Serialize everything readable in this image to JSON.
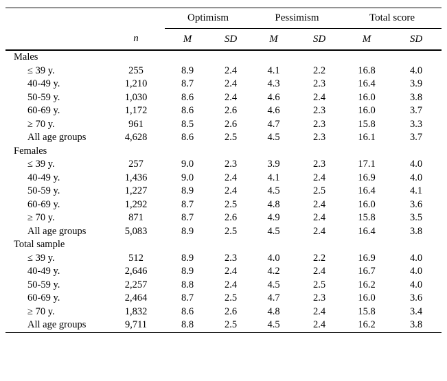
{
  "colors": {
    "background": "#ffffff",
    "text": "#000000",
    "rule": "#000000"
  },
  "table": {
    "spanners": [
      {
        "label": "Optimism"
      },
      {
        "label": "Pessimism"
      },
      {
        "label": "Total score"
      }
    ],
    "column_headers": {
      "n": "n",
      "m1": "M",
      "sd1": "SD",
      "m2": "M",
      "sd2": "SD",
      "m3": "M",
      "sd3": "SD"
    },
    "sections": [
      {
        "label": "Males",
        "rows": [
          {
            "label": "≤ 39 y.",
            "n": "255",
            "optimism_m": "8.9",
            "optimism_sd": "2.4",
            "pessimism_m": "4.1",
            "pessimism_sd": "2.2",
            "total_m": "16.8",
            "total_sd": "4.0"
          },
          {
            "label": "40-49 y.",
            "n": "1,210",
            "optimism_m": "8.7",
            "optimism_sd": "2.4",
            "pessimism_m": "4.3",
            "pessimism_sd": "2.3",
            "total_m": "16.4",
            "total_sd": "3.9"
          },
          {
            "label": "50-59 y.",
            "n": "1,030",
            "optimism_m": "8.6",
            "optimism_sd": "2.4",
            "pessimism_m": "4.6",
            "pessimism_sd": "2.4",
            "total_m": "16.0",
            "total_sd": "3.8"
          },
          {
            "label": "60-69 y.",
            "n": "1,172",
            "optimism_m": "8.6",
            "optimism_sd": "2.6",
            "pessimism_m": "4.6",
            "pessimism_sd": "2.3",
            "total_m": "16.0",
            "total_sd": "3.7"
          },
          {
            "label": "≥ 70 y.",
            "n": "961",
            "optimism_m": "8.5",
            "optimism_sd": "2.6",
            "pessimism_m": "4.7",
            "pessimism_sd": "2.3",
            "total_m": "15.8",
            "total_sd": "3.3"
          },
          {
            "label": "All age groups",
            "n": "4,628",
            "optimism_m": "8.6",
            "optimism_sd": "2.5",
            "pessimism_m": "4.5",
            "pessimism_sd": "2.3",
            "total_m": "16.1",
            "total_sd": "3.7"
          }
        ]
      },
      {
        "label": "Females",
        "rows": [
          {
            "label": "≤ 39 y.",
            "n": "257",
            "optimism_m": "9.0",
            "optimism_sd": "2.3",
            "pessimism_m": "3.9",
            "pessimism_sd": "2.3",
            "total_m": "17.1",
            "total_sd": "4.0"
          },
          {
            "label": "40-49 y.",
            "n": "1,436",
            "optimism_m": "9.0",
            "optimism_sd": "2.4",
            "pessimism_m": "4.1",
            "pessimism_sd": "2.4",
            "total_m": "16.9",
            "total_sd": "4.0"
          },
          {
            "label": "50-59 y.",
            "n": "1,227",
            "optimism_m": "8.9",
            "optimism_sd": "2.4",
            "pessimism_m": "4.5",
            "pessimism_sd": "2.5",
            "total_m": "16.4",
            "total_sd": "4.1"
          },
          {
            "label": "60-69 y.",
            "n": "1,292",
            "optimism_m": "8.7",
            "optimism_sd": "2.5",
            "pessimism_m": "4.8",
            "pessimism_sd": "2.4",
            "total_m": "16.0",
            "total_sd": "3.6"
          },
          {
            "label": "≥ 70 y.",
            "n": "871",
            "optimism_m": "8.7",
            "optimism_sd": "2.6",
            "pessimism_m": "4.9",
            "pessimism_sd": "2.4",
            "total_m": "15.8",
            "total_sd": "3.5"
          },
          {
            "label": "All age groups",
            "n": "5,083",
            "optimism_m": "8.9",
            "optimism_sd": "2.5",
            "pessimism_m": "4.5",
            "pessimism_sd": "2.4",
            "total_m": "16.4",
            "total_sd": "3.8"
          }
        ]
      },
      {
        "label": "Total sample",
        "rows": [
          {
            "label": "≤ 39 y.",
            "n": "512",
            "optimism_m": "8.9",
            "optimism_sd": "2.3",
            "pessimism_m": "4.0",
            "pessimism_sd": "2.2",
            "total_m": "16.9",
            "total_sd": "4.0"
          },
          {
            "label": "40-49 y.",
            "n": "2,646",
            "optimism_m": "8.9",
            "optimism_sd": "2.4",
            "pessimism_m": "4.2",
            "pessimism_sd": "2.4",
            "total_m": "16.7",
            "total_sd": "4.0"
          },
          {
            "label": "50-59 y.",
            "n": "2,257",
            "optimism_m": "8.8",
            "optimism_sd": "2.4",
            "pessimism_m": "4.5",
            "pessimism_sd": "2.5",
            "total_m": "16.2",
            "total_sd": "4.0"
          },
          {
            "label": "60-69 y.",
            "n": "2,464",
            "optimism_m": "8.7",
            "optimism_sd": "2.5",
            "pessimism_m": "4.7",
            "pessimism_sd": "2.3",
            "total_m": "16.0",
            "total_sd": "3.6"
          },
          {
            "label": "≥ 70 y.",
            "n": "1,832",
            "optimism_m": "8.6",
            "optimism_sd": "2.6",
            "pessimism_m": "4.8",
            "pessimism_sd": "2.4",
            "total_m": "15.8",
            "total_sd": "3.4"
          },
          {
            "label": "All age groups",
            "n": "9,711",
            "optimism_m": "8.8",
            "optimism_sd": "2.5",
            "pessimism_m": "4.5",
            "pessimism_sd": "2.4",
            "total_m": "16.2",
            "total_sd": "3.8"
          }
        ]
      }
    ]
  }
}
